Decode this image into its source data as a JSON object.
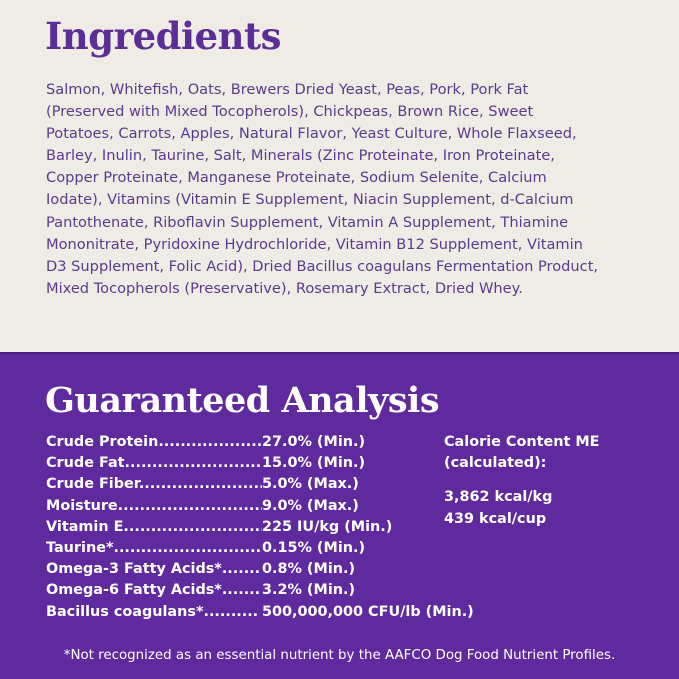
{
  "ingredients": {
    "title": "Ingredients",
    "lines": [
      "Salmon, Whitefish, Oats, Brewers Dried Yeast, Peas, Pork, Pork Fat",
      "(Preserved with Mixed Tocopherols), Chickpeas, Brown Rice, Sweet",
      "Potatoes, Carrots, Apples, Natural Flavor, Yeast Culture, Whole Flaxseed,",
      "Barley, Inulin, Taurine, Salt, Minerals (Zinc Proteinate, Iron Proteinate,",
      "Copper Proteinate, Manganese Proteinate, Sodium Selenite, Calcium",
      "Iodate), Vitamins (Vitamin E Supplement, Niacin Supplement, d-Calcium",
      "Pantothenate, Riboflavin Supplement, Vitamin A Supplement, Thiamine",
      "Mononitrate, Pyridoxine Hydrochloride, Vitamin B12 Supplement, Vitamin",
      "D3 Supplement, Folic Acid), Dried Bacillus coagulans Fermentation Product,",
      "Mixed Tocopherols (Preservative), Rosemary Extract, Dried Whey."
    ]
  },
  "analysis": {
    "title": "Guaranteed Analysis",
    "rows": [
      {
        "label": "Crude  Protein...................",
        "value": "27.0% (Min.)"
      },
      {
        "label": "Crude  Fat..........................",
        "value": "15.0% (Min.)"
      },
      {
        "label": "Crude  Fiber.......................",
        "value": "5.0% (Max.)"
      },
      {
        "label": "Moisture..............................",
        "value": "9.0% (Max.)"
      },
      {
        "label": "Vitamin  E..........................",
        "value": "225 IU/kg (Min.)"
      },
      {
        "label": "Taurine*...............................",
        "value": "0.15% (Min.)"
      },
      {
        "label": "Omega-3 Fatty Acids*.......",
        "value": "0.8% (Min.)"
      },
      {
        "label": "Omega-6 Fatty Acids*.......",
        "value": "3.2% (Min.)"
      },
      {
        "label": "Bacillus coagulans*..........",
        "value": "500,000,000 CFU/lb (Min.)"
      }
    ],
    "calorie": {
      "label_line1": "Calorie Content ME",
      "label_line2": "(calculated):",
      "per_kg": "3,862 kcal/kg",
      "per_cup": "439 kcal/cup"
    },
    "footnote": "*Not recognized as an essential nutrient by the AAFCO Dog Food Nutrient Profiles."
  },
  "colors": {
    "cream": "#efebe5",
    "purple": "#5f2a9d",
    "heading_purple": "#5a2d97"
  }
}
